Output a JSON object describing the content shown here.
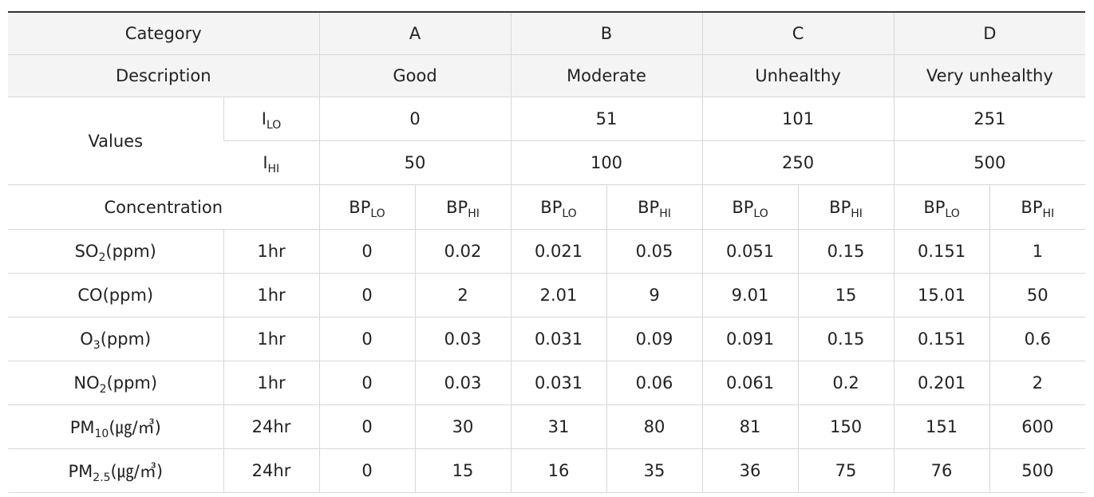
{
  "header": {
    "category_label": "Category",
    "categories": [
      "A",
      "B",
      "C",
      "D"
    ],
    "description_label": "Description",
    "descriptions": [
      "Good",
      "Moderate",
      "Unhealthy",
      "Very unhealthy"
    ]
  },
  "values": {
    "label": "Values",
    "ilo_main": "I",
    "ilo_sub": "LO",
    "ihi_main": "I",
    "ihi_sub": "HI",
    "ilo": [
      "0",
      "51",
      "101",
      "251"
    ],
    "ihi": [
      "50",
      "100",
      "250",
      "500"
    ]
  },
  "concentration": {
    "label": "Concentration",
    "bp_main": "BP",
    "bp_lo_sub": "LO",
    "bp_hi_sub": "HI"
  },
  "rows": [
    {
      "name_main": "SO",
      "name_sub": "2",
      "name_tail": "(ppm)",
      "period": "1hr",
      "values": [
        "0",
        "0.02",
        "0.021",
        "0.05",
        "0.051",
        "0.15",
        "0.151",
        "1"
      ]
    },
    {
      "name_main": "CO",
      "name_sub": "",
      "name_tail": "(ppm)",
      "period": "1hr",
      "values": [
        "0",
        "2",
        "2.01",
        "9",
        "9.01",
        "15",
        "15.01",
        "50"
      ]
    },
    {
      "name_main": "O",
      "name_sub": "3",
      "name_tail": "(ppm)",
      "period": "1hr",
      "values": [
        "0",
        "0.03",
        "0.031",
        "0.09",
        "0.091",
        "0.15",
        "0.151",
        "0.6"
      ]
    },
    {
      "name_main": "NO",
      "name_sub": "2",
      "name_tail": "(ppm)",
      "period": "1hr",
      "values": [
        "0",
        "0.03",
        "0.031",
        "0.06",
        "0.061",
        "0.2",
        "0.201",
        "2"
      ]
    },
    {
      "name_main": "PM",
      "name_sub": "10",
      "name_tail": "(㎍/㎥)",
      "period": "24hr",
      "values": [
        "0",
        "30",
        "31",
        "80",
        "81",
        "150",
        "151",
        "600"
      ]
    },
    {
      "name_main": "PM",
      "name_sub": "2.5",
      "name_tail": "(㎍/㎥)",
      "period": "24hr",
      "values": [
        "0",
        "15",
        "16",
        "35",
        "36",
        "75",
        "76",
        "500"
      ]
    }
  ]
}
